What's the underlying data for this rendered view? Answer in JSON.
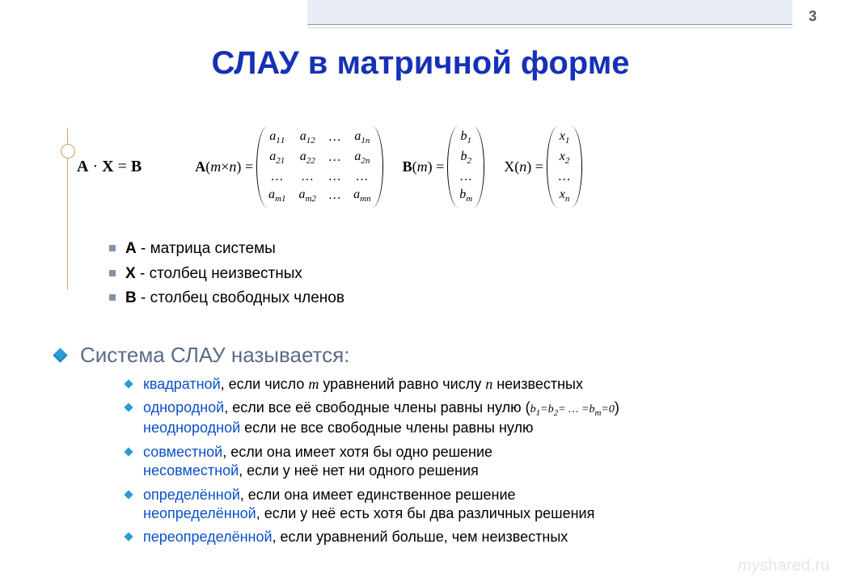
{
  "page": {
    "number": "3"
  },
  "title": "СЛАУ в матричной форме",
  "colors": {
    "title": "#1531b6",
    "top_band": "#e8edf5",
    "top_rule_dark": "#8899b0",
    "top_rule_light": "#d0d6e2",
    "side_line": "#c9a06a",
    "square_bullet": "#8293ab",
    "diamond_bullet": "#2a9bd6",
    "section_text": "#5a6b86",
    "term_text": "#0a50c8",
    "watermark": "#e6e6e6",
    "background": "#ffffff"
  },
  "equation": {
    "lead": "A · X = B",
    "A": {
      "label": "A(m×n) =",
      "rows": [
        [
          "a₁₁",
          "a₁₂",
          "…",
          "a₁ₙ"
        ],
        [
          "a₂₁",
          "a₂₂",
          "…",
          "a₂ₙ"
        ],
        [
          "…",
          "…",
          "…",
          "…"
        ],
        [
          "aₘ₁",
          "aₘ₂",
          "…",
          "aₘₙ"
        ]
      ]
    },
    "B": {
      "label": "B(m) =",
      "rows": [
        [
          "b₁"
        ],
        [
          "b₂"
        ],
        [
          "…"
        ],
        [
          "bₘ"
        ]
      ]
    },
    "X": {
      "label": "X(n) =",
      "rows": [
        [
          "x₁"
        ],
        [
          "x₂"
        ],
        [
          "…"
        ],
        [
          "xₙ"
        ]
      ]
    }
  },
  "legend": [
    {
      "bold": "A",
      "text": " - матрица системы"
    },
    {
      "bold": "X",
      "text": " - столбец неизвестных"
    },
    {
      "bold": "B",
      "text": " - столбец свободных членов"
    }
  ],
  "section_heading": "Система СЛАУ называется:",
  "definitions": [
    {
      "lines": [
        {
          "term": "квадратной",
          "rest_html": ", если число <span class='ital'>m</span> уравнений равно числу <span class='ital'>n</span> неизвестных"
        }
      ]
    },
    {
      "lines": [
        {
          "term": "однородной",
          "rest_html": ", если все её свободные члены равны нулю (<span class='ital sml'>b<sub>1</sub>=b<sub>2</sub>= … =b<sub>m</sub>=0</span>)"
        },
        {
          "term": "неоднородной",
          "rest_html": " если не все свободные члены равны нулю"
        }
      ]
    },
    {
      "lines": [
        {
          "term": "совместной",
          "rest_html": ", если она имеет хотя бы одно решение"
        },
        {
          "term": "несовместной",
          "rest_html": ", если у неё нет ни одного решения"
        }
      ]
    },
    {
      "lines": [
        {
          "term": "определённой",
          "rest_html": ", если она имеет единственное решение"
        },
        {
          "term": "неопределённой",
          "rest_html": ", если у неё есть хотя бы два различных решения"
        }
      ]
    },
    {
      "lines": [
        {
          "term": "переопределённой",
          "rest_html": ", если уравнений больше, чем неизвестных"
        }
      ]
    }
  ],
  "watermark": {
    "prefix": "my",
    "suffix": "shared.ru"
  }
}
